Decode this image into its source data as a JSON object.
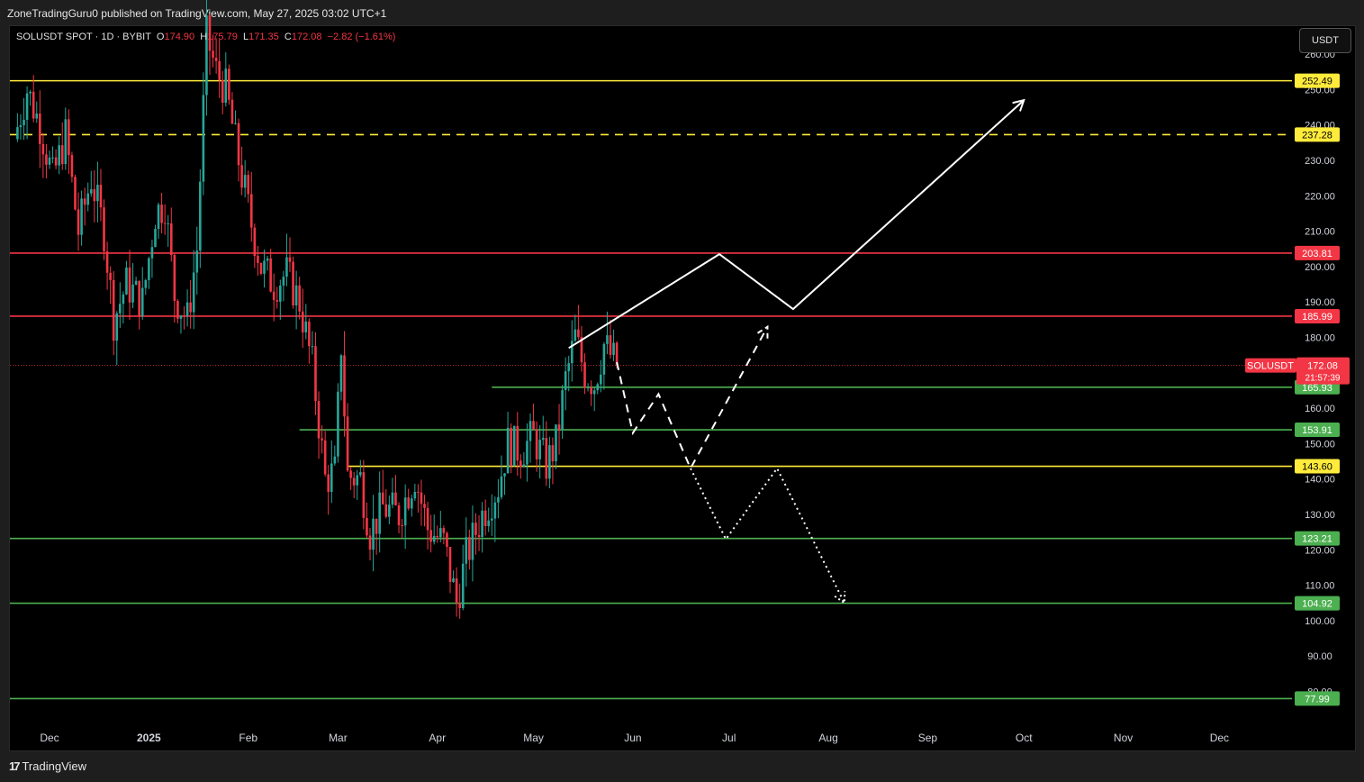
{
  "header": {
    "publisher": "ZoneTradingGuru0 published on TradingView.com, May 27, 2025 03:02 UTC+1"
  },
  "legend": {
    "symbol": "SOLUSDT SPOT · 1D · BYBIT",
    "open_label": "O",
    "open": "174.90",
    "high_label": "H",
    "high": "175.79",
    "low_label": "L",
    "low": "171.35",
    "close_label": "C",
    "close": "172.08",
    "change": "−2.82 (−1.61%)"
  },
  "currency_button": "USDT",
  "footer": {
    "brand": "TradingView",
    "brand_mark": "17"
  },
  "colors": {
    "background": "#000000",
    "up": "#26a69a",
    "down": "#f23645",
    "resistance": "#f23645",
    "support": "#4caf50",
    "key_level": "#ffeb3b",
    "projection": "#ffffff"
  },
  "chart_data": {
    "type": "candlestick",
    "title": "SOLUSDT SPOT · 1D · BYBIT",
    "x_axis": {
      "ticks": [
        {
          "label": "Dec",
          "date": "2024-12-01"
        },
        {
          "label": "2025",
          "date": "2025-01-01"
        },
        {
          "label": "Feb",
          "date": "2025-02-01"
        },
        {
          "label": "Mar",
          "date": "2025-03-01"
        },
        {
          "label": "Apr",
          "date": "2025-04-01"
        },
        {
          "label": "May",
          "date": "2025-05-01"
        },
        {
          "label": "Jun",
          "date": "2025-06-01"
        },
        {
          "label": "Jul",
          "date": "2025-07-01"
        },
        {
          "label": "Aug",
          "date": "2025-08-01"
        },
        {
          "label": "Sep",
          "date": "2025-09-01"
        },
        {
          "label": "Oct",
          "date": "2025-10-01"
        },
        {
          "label": "Nov",
          "date": "2025-11-01"
        },
        {
          "label": "Dec",
          "date": "2025-12-01"
        }
      ]
    },
    "y_axis": {
      "ticks": [
        80,
        90,
        100,
        110,
        120,
        130,
        140,
        150,
        160,
        170,
        180,
        190,
        200,
        210,
        220,
        230,
        240,
        250,
        260
      ],
      "tick_labels": [
        "80.00",
        "90.00",
        "100.00",
        "110.00",
        "120.00",
        "130.00",
        "140.00",
        "150.00",
        "160.00",
        "170.00",
        "180.00",
        "190.00",
        "200.00",
        "210.00",
        "220.00",
        "230.00",
        "240.00",
        "250.00",
        "260.00"
      ],
      "range": [
        76,
        265
      ]
    },
    "price_path": [
      {
        "date": "2024-11-20",
        "close": 236
      },
      {
        "date": "2024-11-24",
        "close": 250
      },
      {
        "date": "2024-11-28",
        "close": 240
      },
      {
        "date": "2024-12-02",
        "close": 225
      },
      {
        "date": "2024-12-06",
        "close": 237
      },
      {
        "date": "2024-12-10",
        "close": 210
      },
      {
        "date": "2024-12-14",
        "close": 225
      },
      {
        "date": "2024-12-18",
        "close": 210
      },
      {
        "date": "2024-12-21",
        "close": 185
      },
      {
        "date": "2024-12-25",
        "close": 195
      },
      {
        "date": "2024-12-30",
        "close": 190
      },
      {
        "date": "2025-01-03",
        "close": 215
      },
      {
        "date": "2025-01-06",
        "close": 218
      },
      {
        "date": "2025-01-09",
        "close": 192
      },
      {
        "date": "2025-01-13",
        "close": 185
      },
      {
        "date": "2025-01-16",
        "close": 205
      },
      {
        "date": "2025-01-19",
        "close": 265
      },
      {
        "date": "2025-01-22",
        "close": 255
      },
      {
        "date": "2025-01-25",
        "close": 250
      },
      {
        "date": "2025-01-29",
        "close": 230
      },
      {
        "date": "2025-02-02",
        "close": 212
      },
      {
        "date": "2025-02-05",
        "close": 200
      },
      {
        "date": "2025-02-09",
        "close": 195
      },
      {
        "date": "2025-02-13",
        "close": 198
      },
      {
        "date": "2025-02-17",
        "close": 190
      },
      {
        "date": "2025-02-21",
        "close": 172
      },
      {
        "date": "2025-02-25",
        "close": 140
      },
      {
        "date": "2025-02-28",
        "close": 142
      },
      {
        "date": "2025-03-02",
        "close": 178
      },
      {
        "date": "2025-03-04",
        "close": 141
      },
      {
        "date": "2025-03-08",
        "close": 140
      },
      {
        "date": "2025-03-11",
        "close": 125
      },
      {
        "date": "2025-03-15",
        "close": 132
      },
      {
        "date": "2025-03-20",
        "close": 130
      },
      {
        "date": "2025-03-25",
        "close": 141
      },
      {
        "date": "2025-03-29",
        "close": 126
      },
      {
        "date": "2025-04-03",
        "close": 122
      },
      {
        "date": "2025-04-07",
        "close": 105
      },
      {
        "date": "2025-04-10",
        "close": 118
      },
      {
        "date": "2025-04-15",
        "close": 130
      },
      {
        "date": "2025-04-20",
        "close": 138
      },
      {
        "date": "2025-04-23",
        "close": 150
      },
      {
        "date": "2025-04-27",
        "close": 148
      },
      {
        "date": "2025-05-01",
        "close": 152
      },
      {
        "date": "2025-05-05",
        "close": 144
      },
      {
        "date": "2025-05-08",
        "close": 150
      },
      {
        "date": "2025-05-11",
        "close": 168
      },
      {
        "date": "2025-05-14",
        "close": 180
      },
      {
        "date": "2025-05-17",
        "close": 170
      },
      {
        "date": "2025-05-20",
        "close": 167
      },
      {
        "date": "2025-05-23",
        "close": 178
      },
      {
        "date": "2025-05-27",
        "close": 172.08
      }
    ],
    "horizontal_levels": [
      {
        "value": 252.49,
        "label": "252.49",
        "color": "#ffeb3b",
        "style": "solid"
      },
      {
        "value": 237.28,
        "label": "237.28",
        "color": "#ffeb3b",
        "style": "dashed"
      },
      {
        "value": 203.81,
        "label": "203.81",
        "color": "#f23645",
        "style": "solid"
      },
      {
        "value": 185.99,
        "label": "185.99",
        "color": "#f23645",
        "style": "solid"
      },
      {
        "value": 165.93,
        "label": "165.93",
        "color": "#4caf50",
        "style": "solid",
        "from_date": "2025-04-18"
      },
      {
        "value": 153.91,
        "label": "153.91",
        "color": "#4caf50",
        "style": "solid",
        "from_date": "2025-02-17"
      },
      {
        "value": 143.6,
        "label": "143.60",
        "color": "#ffeb3b",
        "style": "solid",
        "from_date": "2025-03-04"
      },
      {
        "value": 123.21,
        "label": "123.21",
        "color": "#4caf50",
        "style": "solid"
      },
      {
        "value": 104.92,
        "label": "104.92",
        "color": "#4caf50",
        "style": "solid"
      },
      {
        "value": 77.99,
        "label": "77.99",
        "color": "#4caf50",
        "style": "solid"
      }
    ],
    "current_price": {
      "symbol": "SOLUSDT",
      "value": 172.08,
      "label": "172.08",
      "countdown": "21:57:39"
    },
    "projections": [
      {
        "name": "bullish",
        "style": "solid",
        "points": [
          [
            "2025-05-12",
            177
          ],
          [
            "2025-06-28",
            203.5
          ],
          [
            "2025-07-21",
            188
          ],
          [
            "2025-10-01",
            247
          ]
        ]
      },
      {
        "name": "alt-bullish",
        "style": "dashed",
        "points": [
          [
            "2025-05-27",
            173
          ],
          [
            "2025-06-01",
            153
          ],
          [
            "2025-06-09",
            164
          ],
          [
            "2025-06-19",
            143
          ],
          [
            "2025-07-13",
            183
          ]
        ]
      },
      {
        "name": "bearish",
        "style": "dotted",
        "points": [
          [
            "2025-06-19",
            143
          ],
          [
            "2025-06-30",
            123
          ],
          [
            "2025-07-16",
            143
          ],
          [
            "2025-08-06",
            105
          ]
        ]
      }
    ]
  }
}
